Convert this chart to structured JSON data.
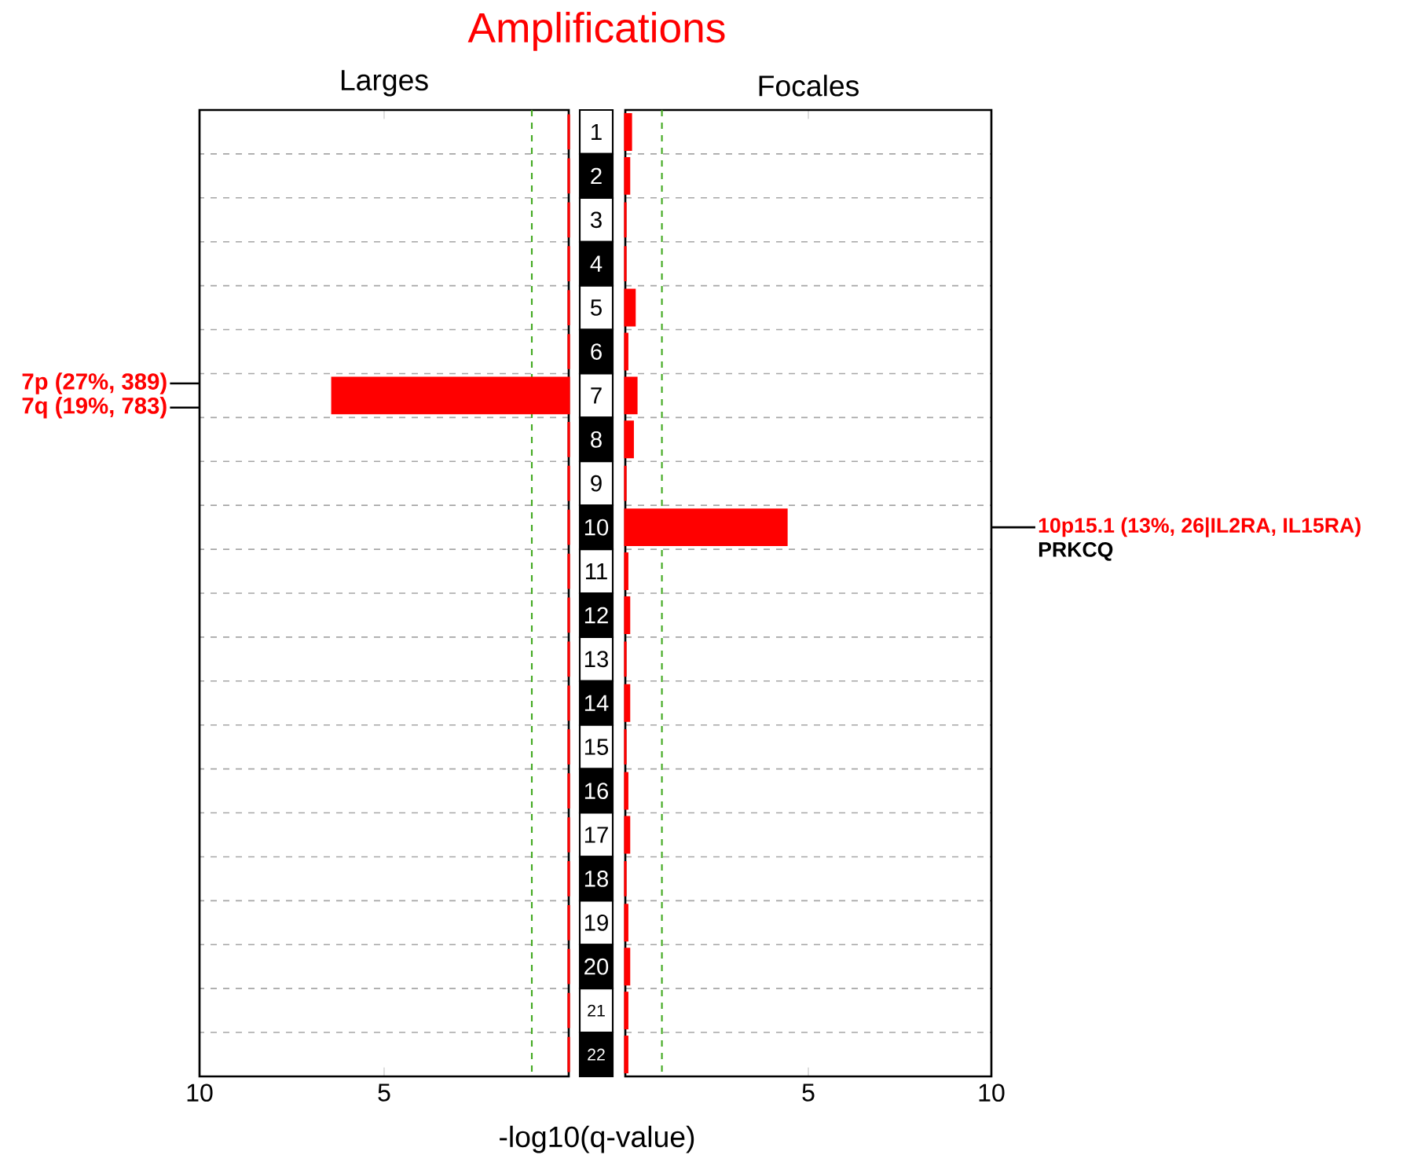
{
  "chart_data": [
    {
      "type": "bar",
      "orientation": "horizontal",
      "title": "Amplifications",
      "subtitle": "Larges",
      "xlabel": "-log10(q-value)",
      "categories": [
        "1",
        "2",
        "3",
        "4",
        "5",
        "6",
        "7",
        "8",
        "9",
        "10",
        "11",
        "12",
        "13",
        "14",
        "15",
        "16",
        "17",
        "18",
        "19",
        "20",
        "21",
        "22"
      ],
      "series": [
        {
          "color": "#ff0000",
          "values": [
            0,
            0,
            0,
            0,
            0,
            0,
            6.4,
            0,
            0,
            0,
            0,
            0,
            0,
            0,
            0,
            0,
            0,
            0,
            0,
            0,
            0,
            0
          ]
        }
      ],
      "xlim": [
        10,
        0
      ],
      "xticks": [
        10,
        5,
        {
          "value": 0,
          "label": null
        }
      ],
      "grid": "y",
      "tick_labels": "x",
      "ref_lines": [
        {
          "axis": "x",
          "value": 1,
          "color": "#44aa22",
          "line_style": "dashed"
        }
      ],
      "annotations": [
        "7p (27%, 389)",
        "7q (19%, 783)"
      ]
    },
    {
      "type": "bar",
      "orientation": "horizontal",
      "title": "Focales",
      "categories": [
        "1",
        "2",
        "3",
        "4",
        "5",
        "6",
        "7",
        "8",
        "9",
        "10",
        "11",
        "12",
        "13",
        "14",
        "15",
        "16",
        "17",
        "18",
        "19",
        "20",
        "21",
        "22"
      ],
      "series": [
        {
          "color": "#ff0000",
          "values": [
            0.15,
            0.1,
            0,
            0,
            0.25,
            0.05,
            0.3,
            0.2,
            0,
            4.4,
            0.05,
            0.1,
            0,
            0.1,
            0,
            0.05,
            0.1,
            0,
            0.05,
            0.1,
            0.05,
            0.05
          ]
        }
      ],
      "xlim": [
        0,
        10
      ],
      "xticks": [
        {
          "value": 0,
          "label": null
        },
        5,
        10
      ],
      "grid": "y",
      "ref_lines": [
        {
          "axis": "x",
          "value": 1,
          "color": "#44aa22",
          "line_style": "dashed"
        }
      ],
      "annotations": [
        "10p15.1 (13%, 26|IL2RA, IL15RA)",
        "PRKCQ"
      ]
    }
  ]
}
